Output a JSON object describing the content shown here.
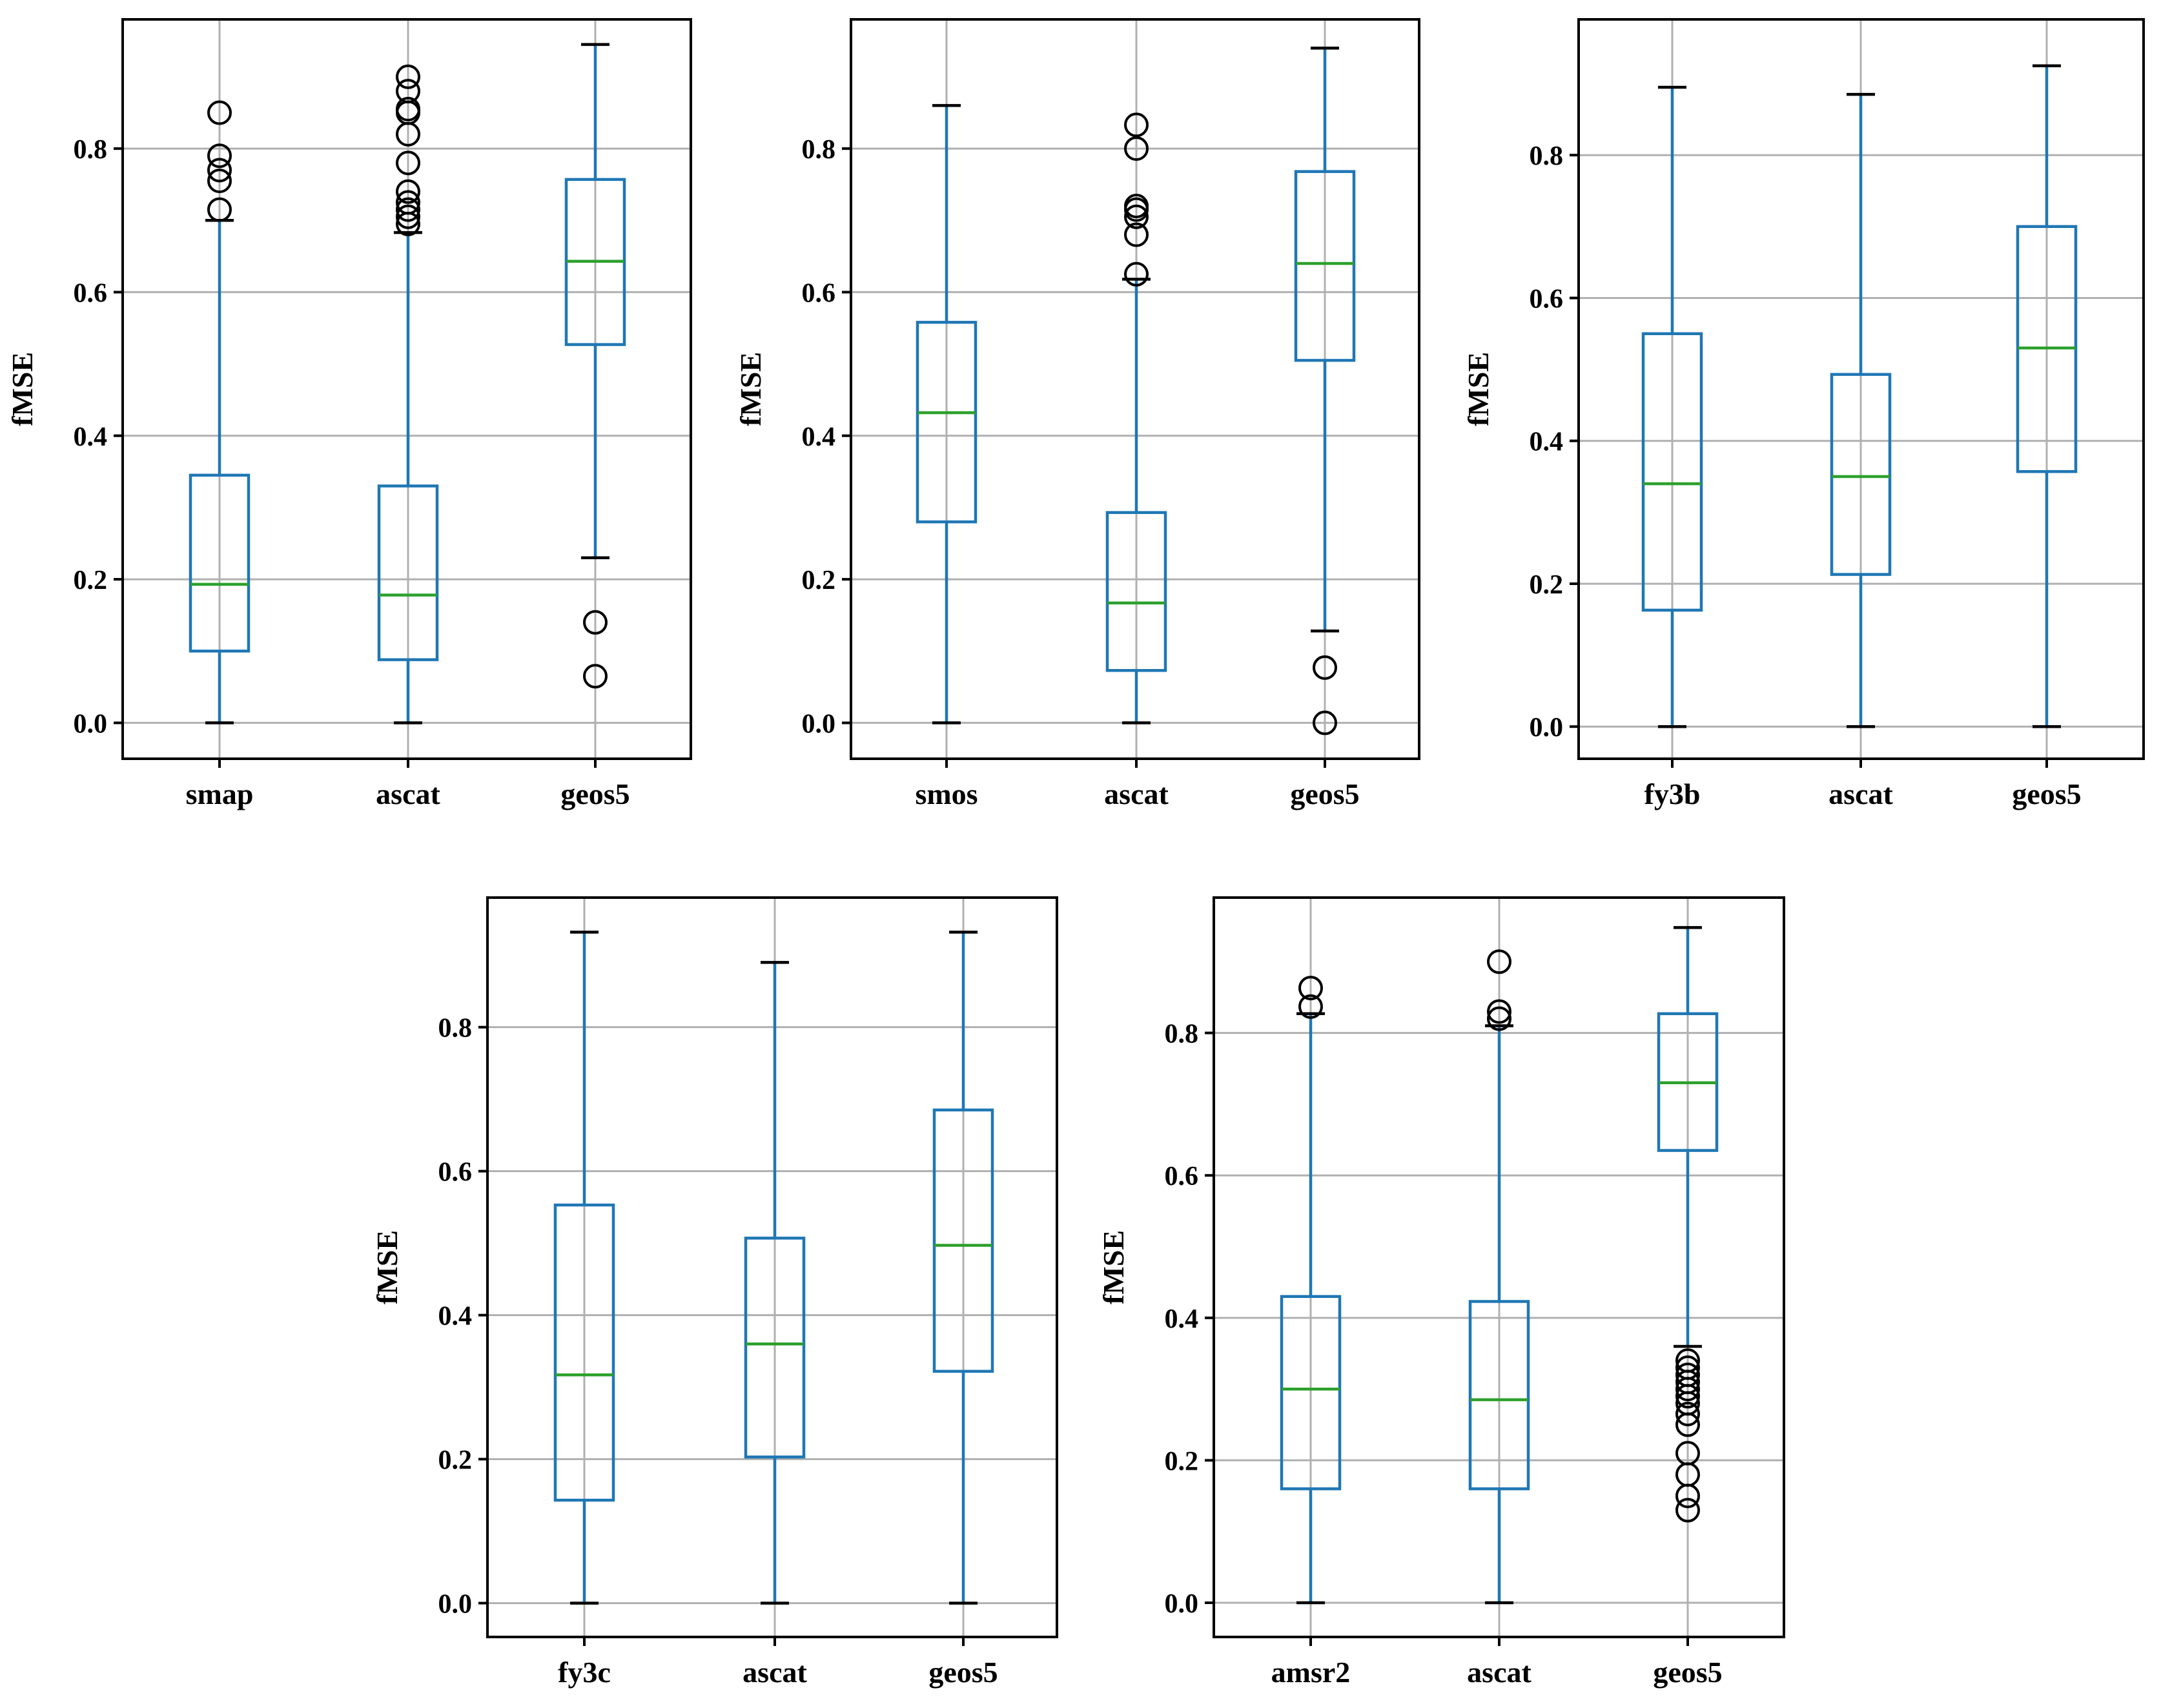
{
  "colors": {
    "box": "#1f77b4",
    "median": "#2ca02c",
    "grid": "#b0b0b0",
    "frame": "#000000",
    "flier": "#000000"
  },
  "chart_data": [
    {
      "type": "boxplot",
      "ylabel": "fMSE",
      "ylim": [
        -0.05,
        0.98
      ],
      "yticks": [
        0.0,
        0.2,
        0.4,
        0.6,
        0.8
      ],
      "ytick_labels": [
        "0.0",
        "0.2",
        "0.4",
        "0.6",
        "0.8"
      ],
      "grid": true,
      "categories": [
        "smap",
        "ascat",
        "geos5"
      ],
      "boxes": [
        {
          "whisker_low": 0.0,
          "q1": 0.1,
          "median": 0.193,
          "q3": 0.345,
          "whisker_high": 0.7,
          "outliers": [
            0.715,
            0.755,
            0.77,
            0.79,
            0.85
          ]
        },
        {
          "whisker_low": 0.0,
          "q1": 0.088,
          "median": 0.178,
          "q3": 0.33,
          "whisker_high": 0.683,
          "outliers": [
            0.695,
            0.705,
            0.715,
            0.725,
            0.74,
            0.78,
            0.82,
            0.85,
            0.855,
            0.88,
            0.9
          ]
        },
        {
          "whisker_low": 0.23,
          "q1": 0.527,
          "median": 0.643,
          "q3": 0.757,
          "whisker_high": 0.945,
          "outliers": [
            0.065,
            0.14
          ]
        }
      ]
    },
    {
      "type": "boxplot",
      "ylabel": "fMSE",
      "ylim": [
        -0.05,
        0.98
      ],
      "yticks": [
        0.0,
        0.2,
        0.4,
        0.6,
        0.8
      ],
      "ytick_labels": [
        "0.0",
        "0.2",
        "0.4",
        "0.6",
        "0.8"
      ],
      "grid": true,
      "categories": [
        "smos",
        "ascat",
        "geos5"
      ],
      "boxes": [
        {
          "whisker_low": 0.0,
          "q1": 0.28,
          "median": 0.432,
          "q3": 0.558,
          "whisker_high": 0.86,
          "outliers": []
        },
        {
          "whisker_low": 0.0,
          "q1": 0.073,
          "median": 0.167,
          "q3": 0.293,
          "whisker_high": 0.618,
          "outliers": [
            0.625,
            0.68,
            0.705,
            0.715,
            0.72,
            0.8,
            0.833
          ]
        },
        {
          "whisker_low": 0.128,
          "q1": 0.505,
          "median": 0.64,
          "q3": 0.768,
          "whisker_high": 0.94,
          "outliers": [
            0.0,
            0.077
          ]
        }
      ]
    },
    {
      "type": "boxplot",
      "ylabel": "fMSE",
      "ylim": [
        -0.045,
        0.99
      ],
      "yticks": [
        0.0,
        0.2,
        0.4,
        0.6,
        0.8
      ],
      "ytick_labels": [
        "0.0",
        "0.2",
        "0.4",
        "0.6",
        "0.8"
      ],
      "grid": true,
      "categories": [
        "fy3b",
        "ascat",
        "geos5"
      ],
      "boxes": [
        {
          "whisker_low": 0.0,
          "q1": 0.163,
          "median": 0.34,
          "q3": 0.55,
          "whisker_high": 0.895,
          "outliers": []
        },
        {
          "whisker_low": 0.0,
          "q1": 0.213,
          "median": 0.35,
          "q3": 0.493,
          "whisker_high": 0.885,
          "outliers": []
        },
        {
          "whisker_low": 0.0,
          "q1": 0.357,
          "median": 0.53,
          "q3": 0.7,
          "whisker_high": 0.925,
          "outliers": []
        }
      ]
    },
    {
      "type": "boxplot",
      "ylabel": "fMSE",
      "ylim": [
        -0.047,
        0.98
      ],
      "yticks": [
        0.0,
        0.2,
        0.4,
        0.6,
        0.8
      ],
      "ytick_labels": [
        "0.0",
        "0.2",
        "0.4",
        "0.6",
        "0.8"
      ],
      "grid": true,
      "categories": [
        "fy3c",
        "ascat",
        "geos5"
      ],
      "boxes": [
        {
          "whisker_low": 0.0,
          "q1": 0.143,
          "median": 0.317,
          "q3": 0.553,
          "whisker_high": 0.932,
          "outliers": []
        },
        {
          "whisker_low": 0.0,
          "q1": 0.203,
          "median": 0.36,
          "q3": 0.507,
          "whisker_high": 0.89,
          "outliers": []
        },
        {
          "whisker_low": 0.0,
          "q1": 0.322,
          "median": 0.497,
          "q3": 0.685,
          "whisker_high": 0.932,
          "outliers": []
        }
      ]
    },
    {
      "type": "boxplot",
      "ylabel": "fMSE",
      "ylim": [
        -0.048,
        0.99
      ],
      "yticks": [
        0.0,
        0.2,
        0.4,
        0.6,
        0.8
      ],
      "ytick_labels": [
        "0.0",
        "0.2",
        "0.4",
        "0.6",
        "0.8"
      ],
      "grid": true,
      "categories": [
        "amsr2",
        "ascat",
        "geos5"
      ],
      "boxes": [
        {
          "whisker_low": 0.0,
          "q1": 0.16,
          "median": 0.3,
          "q3": 0.43,
          "whisker_high": 0.827,
          "outliers": [
            0.837,
            0.863
          ]
        },
        {
          "whisker_low": 0.0,
          "q1": 0.16,
          "median": 0.285,
          "q3": 0.423,
          "whisker_high": 0.81,
          "outliers": [
            0.82,
            0.83,
            0.9
          ]
        },
        {
          "whisker_low": 0.36,
          "q1": 0.635,
          "median": 0.73,
          "q3": 0.827,
          "whisker_high": 0.948,
          "outliers": [
            0.13,
            0.15,
            0.18,
            0.21,
            0.25,
            0.265,
            0.28,
            0.29,
            0.3,
            0.31,
            0.32,
            0.33,
            0.34
          ]
        }
      ]
    }
  ]
}
